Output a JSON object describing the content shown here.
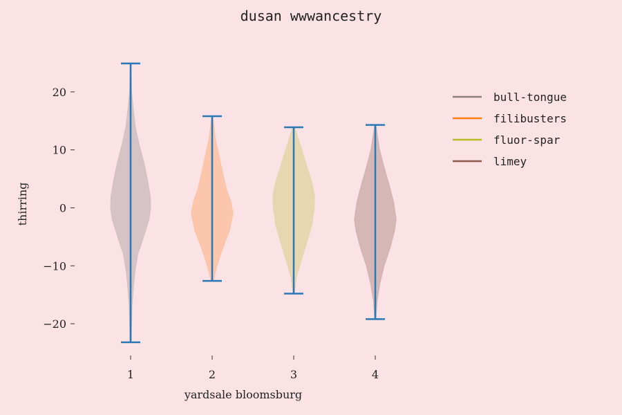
{
  "colors": {
    "background": "#fbe2e4",
    "stats_line": "#2a78b5"
  },
  "chart_data": {
    "type": "violin",
    "title": "dusan wwwancestry",
    "xlabel": "yardsale bloomsburg",
    "ylabel": "thirring",
    "categories": [
      "1",
      "2",
      "3",
      "4"
    ],
    "yticks": [
      20,
      10,
      0,
      -10,
      -20
    ],
    "ytick_labels": [
      "20",
      "10",
      "0",
      "−10",
      "−20"
    ],
    "ylim": [
      -25,
      27.5
    ],
    "legend_position": "top-right",
    "series": [
      {
        "name": "bull-tongue",
        "color": "#8c7f7f",
        "fill": "#d4c1c3",
        "min": -23.2,
        "max": 24.9,
        "profile": [
          [
            -23.2,
            0.02
          ],
          [
            -20,
            0.04
          ],
          [
            -17,
            0.06
          ],
          [
            -14,
            0.12
          ],
          [
            -11,
            0.2
          ],
          [
            -8,
            0.34
          ],
          [
            -5,
            0.62
          ],
          [
            -2,
            0.88
          ],
          [
            0,
            0.96
          ],
          [
            2,
            0.94
          ],
          [
            5,
            0.8
          ],
          [
            8,
            0.62
          ],
          [
            11,
            0.4
          ],
          [
            14,
            0.22
          ],
          [
            17,
            0.12
          ],
          [
            20,
            0.04
          ],
          [
            24.9,
            0.01
          ]
        ]
      },
      {
        "name": "filibusters",
        "color": "#ff7f0e",
        "fill": "#fbc4a8",
        "min": -12.6,
        "max": 15.8,
        "profile": [
          [
            -12.6,
            0.05
          ],
          [
            -10,
            0.22
          ],
          [
            -7,
            0.5
          ],
          [
            -4,
            0.82
          ],
          [
            -1,
            1.0
          ],
          [
            1,
            0.9
          ],
          [
            3,
            0.7
          ],
          [
            6,
            0.5
          ],
          [
            9,
            0.32
          ],
          [
            12,
            0.14
          ],
          [
            15.8,
            0.02
          ]
        ]
      },
      {
        "name": "fluor-spar",
        "color": "#bcbd22",
        "fill": "#e6d6ae",
        "min": -14.8,
        "max": 13.9,
        "profile": [
          [
            -14.8,
            0.02
          ],
          [
            -12,
            0.12
          ],
          [
            -9,
            0.36
          ],
          [
            -6,
            0.62
          ],
          [
            -3,
            0.86
          ],
          [
            0,
            0.98
          ],
          [
            2,
            1.0
          ],
          [
            4,
            0.9
          ],
          [
            7,
            0.64
          ],
          [
            10,
            0.38
          ],
          [
            13.9,
            0.04
          ]
        ]
      },
      {
        "name": "limey",
        "color": "#8c564b",
        "fill": "#d3b4b3",
        "min": -19.2,
        "max": 14.3,
        "profile": [
          [
            -19.2,
            0.02
          ],
          [
            -16,
            0.08
          ],
          [
            -13,
            0.22
          ],
          [
            -10,
            0.42
          ],
          [
            -7,
            0.7
          ],
          [
            -4,
            0.92
          ],
          [
            -2,
            1.0
          ],
          [
            1,
            0.88
          ],
          [
            4,
            0.66
          ],
          [
            7,
            0.42
          ],
          [
            10,
            0.2
          ],
          [
            14.3,
            0.02
          ]
        ]
      }
    ]
  }
}
